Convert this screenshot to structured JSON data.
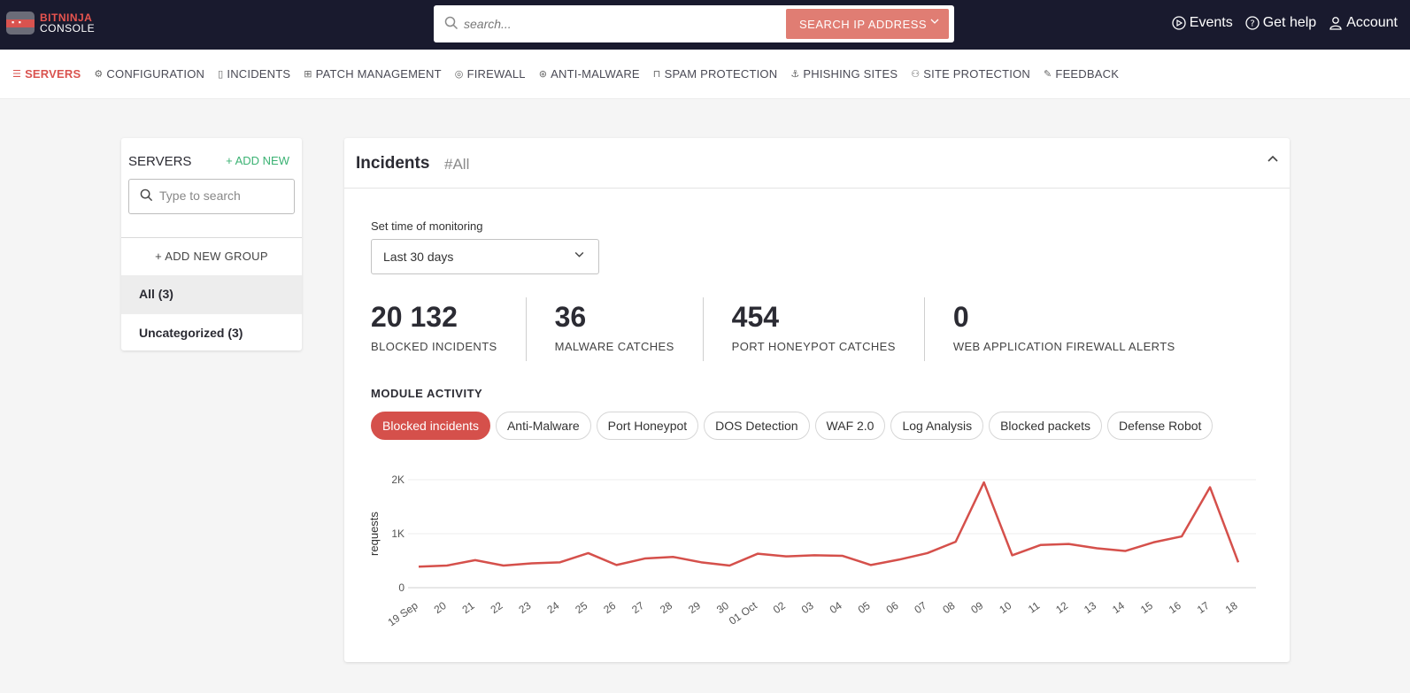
{
  "header": {
    "logo_line1": "BITNINJA",
    "logo_line2": "CONSOLE",
    "search_placeholder": "search...",
    "search_ip_label": "SEARCH IP ADDRESS",
    "links": [
      {
        "icon": "play-circle-icon",
        "label": "Events"
      },
      {
        "icon": "help-circle-icon",
        "label": "Get help"
      },
      {
        "icon": "user-icon",
        "label": "Account"
      }
    ]
  },
  "nav": {
    "items": [
      {
        "icon": "servers-icon",
        "label": "SERVERS",
        "active": true
      },
      {
        "icon": "gear-icon",
        "label": "CONFIGURATION"
      },
      {
        "icon": "document-icon",
        "label": "INCIDENTS"
      },
      {
        "icon": "grid-icon",
        "label": "PATCH MANAGEMENT"
      },
      {
        "icon": "fire-icon",
        "label": "FIREWALL"
      },
      {
        "icon": "bug-icon",
        "label": "ANTI-MALWARE"
      },
      {
        "icon": "lock-icon",
        "label": "SPAM PROTECTION"
      },
      {
        "icon": "anchor-icon",
        "label": "PHISHING SITES"
      },
      {
        "icon": "users-icon",
        "label": "SITE PROTECTION"
      },
      {
        "icon": "pencil-icon",
        "label": "FEEDBACK"
      }
    ]
  },
  "sidebar": {
    "title": "SERVERS",
    "add_new": "ADD NEW",
    "search_placeholder": "Type to search",
    "add_group": "ADD NEW GROUP",
    "groups": [
      {
        "label": "All (3)",
        "selected": true
      },
      {
        "label": "Uncategorized (3)"
      }
    ]
  },
  "incidents": {
    "title": "Incidents",
    "filter": "#All",
    "monitoring_label": "Set time of monitoring",
    "monitoring_value": "Last 30 days",
    "stats": [
      {
        "value": "20 132",
        "label": "BLOCKED INCIDENTS"
      },
      {
        "value": "36",
        "label": "MALWARE CATCHES"
      },
      {
        "value": "454",
        "label": "PORT HONEYPOT CATCHES"
      },
      {
        "value": "0",
        "label": "WEB APPLICATION FIREWALL ALERTS"
      }
    ],
    "module_title": "MODULE ACTIVITY",
    "modules": [
      {
        "label": "Blocked incidents",
        "active": true
      },
      {
        "label": "Anti-Malware"
      },
      {
        "label": "Port Honeypot"
      },
      {
        "label": "DOS Detection"
      },
      {
        "label": "WAF 2.0"
      },
      {
        "label": "Log Analysis"
      },
      {
        "label": "Blocked packets"
      },
      {
        "label": "Defense Robot"
      }
    ]
  },
  "chart_data": {
    "type": "line",
    "ylabel": "requests",
    "xlabel": "",
    "ylim": [
      0,
      2000
    ],
    "yticks": [
      0,
      1000,
      2000
    ],
    "ytick_labels": [
      "0",
      "1K",
      "2K"
    ],
    "grid": true,
    "line_color": "#d5504b",
    "categories": [
      "19 Sep",
      "20",
      "21",
      "22",
      "23",
      "24",
      "25",
      "26",
      "27",
      "28",
      "29",
      "30",
      "01 Oct",
      "02",
      "03",
      "04",
      "05",
      "06",
      "07",
      "08",
      "09",
      "10",
      "11",
      "12",
      "13",
      "14",
      "15",
      "16",
      "17",
      "18"
    ],
    "series": [
      {
        "values": [
          390,
          410,
          510,
          410,
          450,
          470,
          640,
          420,
          540,
          570,
          470,
          410,
          630,
          580,
          600,
          590,
          420,
          520,
          640,
          850,
          1950,
          600,
          790,
          810,
          730,
          680,
          840,
          950,
          1860,
          470
        ]
      }
    ]
  }
}
